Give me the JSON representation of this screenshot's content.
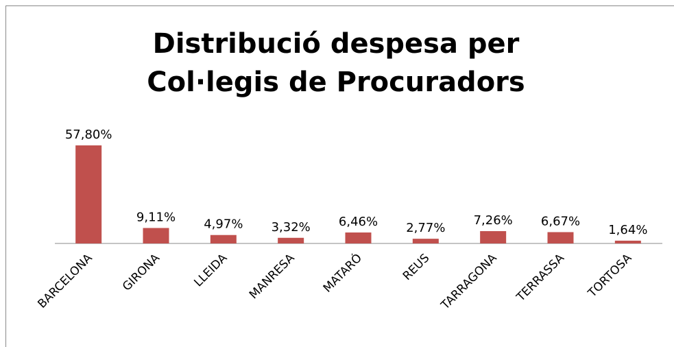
{
  "chart_data": {
    "type": "bar",
    "title": "Distribució despesa per Col·legis de Procuradors",
    "categories": [
      "BARCELONA",
      "GIRONA",
      "LLEIDA",
      "MANRESA",
      "MATARÓ",
      "REUS",
      "TARRAGONA",
      "TERRASSA",
      "TORTOSA"
    ],
    "values": [
      57.8,
      9.11,
      4.97,
      3.32,
      6.46,
      2.77,
      7.26,
      6.67,
      1.64
    ],
    "value_labels": [
      "57,80%",
      "9,11%",
      "4,97%",
      "3,32%",
      "6,46%",
      "2,77%",
      "7,26%",
      "6,67%",
      "1,64%"
    ],
    "color": "#c0504d"
  }
}
